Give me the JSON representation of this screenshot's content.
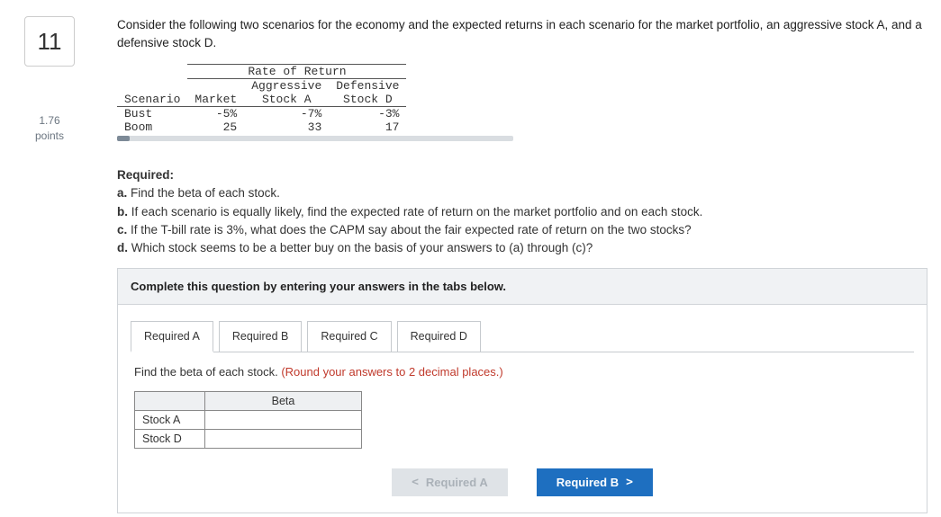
{
  "question": {
    "number": "11",
    "points_value": "1.76",
    "points_label": "points",
    "prompt": "Consider the following two scenarios for the economy and the expected returns in each scenario for the market portfolio, an aggressive stock A, and a defensive stock D."
  },
  "data_table": {
    "group_header": "Rate of Return",
    "columns": [
      "Scenario",
      "Market",
      "Aggressive Stock A",
      "Defensive Stock D"
    ],
    "col_line2": [
      "",
      "",
      "Stock A",
      "Stock D"
    ],
    "col_line1": [
      "",
      "Market",
      "Aggressive",
      "Defensive"
    ],
    "rows": [
      {
        "scenario": "Bust",
        "market": "-5%",
        "stockA": "-7%",
        "stockD": "-3%"
      },
      {
        "scenario": "Boom",
        "market": "25",
        "stockA": "33",
        "stockD": "17"
      }
    ],
    "font_family": "Courier New, monospace"
  },
  "required": {
    "heading": "Required:",
    "items": [
      {
        "label": "a.",
        "text": "Find the beta of each stock."
      },
      {
        "label": "b.",
        "text": "If each scenario is equally likely, find the expected rate of return on the market portfolio and on each stock."
      },
      {
        "label": "c.",
        "text": "If the T-bill rate is 3%, what does the CAPM say about the fair expected rate of return on the two stocks?"
      },
      {
        "label": "d.",
        "text": "Which stock seems to be a better buy on the basis of your answers to (a) through (c)?"
      }
    ]
  },
  "instruction": "Complete this question by entering your answers in the tabs below.",
  "tabs": [
    {
      "id": "a",
      "label": "Required A",
      "active": true
    },
    {
      "id": "b",
      "label": "Required B",
      "active": false
    },
    {
      "id": "c",
      "label": "Required C",
      "active": false
    },
    {
      "id": "d",
      "label": "Required D",
      "active": false
    }
  ],
  "panel": {
    "lead": "Find the beta of each stock. ",
    "note": "(Round your answers to 2 decimal places.)",
    "beta_header": "Beta",
    "rows": [
      "Stock A",
      "Stock D"
    ]
  },
  "nav": {
    "prev_label": "Required A",
    "next_label": "Required B",
    "prev_glyph": "<",
    "next_glyph": ">"
  },
  "colors": {
    "accent": "#1e6fc0",
    "disabled_bg": "#dfe3e7",
    "disabled_fg": "#aab1b8",
    "note": "#c0392b",
    "panel_bg": "#f0f2f4",
    "border": "#d0d4d8"
  }
}
